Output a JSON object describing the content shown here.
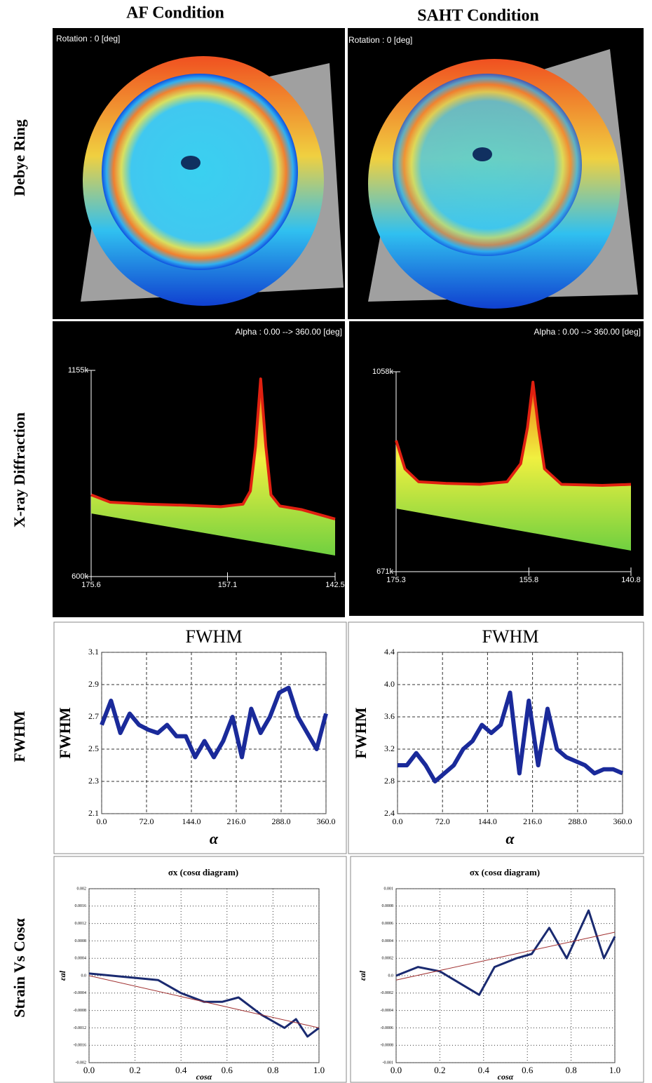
{
  "columns": [
    "AF Condition",
    "SAHT Condition"
  ],
  "rows": [
    "Debye Ring",
    "X-ray Diffraction",
    "FWHM",
    "Strain Vs Cosα"
  ],
  "debye_labels": [
    "Rotation : 0 [deg]",
    "Rotation : 0 [deg]"
  ],
  "chart_data": [
    {
      "type": "area",
      "subtitle": "Alpha : 0.00 --> 360.00 [deg]",
      "color": "#e02010",
      "x": [
        175.6,
        173,
        168,
        163,
        158,
        155,
        154,
        153.3,
        152.6,
        151.9,
        151.2,
        150,
        147,
        142.5
      ],
      "values": [
        820000,
        800000,
        795000,
        792000,
        788000,
        795000,
        830000,
        950000,
        1132000,
        950000,
        820000,
        790000,
        780000,
        755000
      ],
      "xlim": [
        175.6,
        142.5
      ],
      "xticks": [
        175.6,
        157.1,
        142.5
      ],
      "ylim": [
        600000,
        1155000
      ],
      "yticks": [
        {
          "value": 600000,
          "label": "600k"
        },
        {
          "value": 1155000,
          "label": "1155k"
        }
      ],
      "grid": false
    },
    {
      "type": "area",
      "subtitle": "Alpha : 0.00 --> 360.00 [deg]",
      "color": "#e02010",
      "x": [
        175.3,
        174,
        172,
        168,
        163,
        159,
        157,
        156,
        155.2,
        154.4,
        153.5,
        151,
        145,
        140.8
      ],
      "values": [
        925000,
        870000,
        845000,
        842000,
        840000,
        845000,
        880000,
        950000,
        1038000,
        950000,
        870000,
        840000,
        838000,
        840000
      ],
      "xlim": [
        175.3,
        140.8
      ],
      "xticks": [
        175.3,
        155.8,
        140.8
      ],
      "ylim": [
        671000,
        1058000
      ],
      "yticks": [
        {
          "value": 671000,
          "label": "671k"
        },
        {
          "value": 1058000,
          "label": "1058k"
        }
      ],
      "grid": false
    },
    {
      "type": "line",
      "title": "FWHM",
      "y_label": "FWHM",
      "x_label": "α",
      "color": "#1a2a9a",
      "x": [
        0,
        15,
        30,
        45,
        60,
        75,
        90,
        105,
        120,
        135,
        150,
        165,
        180,
        195,
        210,
        225,
        240,
        255,
        270,
        285,
        300,
        315,
        330,
        345,
        360
      ],
      "values": [
        2.65,
        2.8,
        2.6,
        2.72,
        2.65,
        2.62,
        2.6,
        2.65,
        2.58,
        2.58,
        2.45,
        2.55,
        2.45,
        2.55,
        2.7,
        2.45,
        2.75,
        2.6,
        2.7,
        2.85,
        2.88,
        2.7,
        2.6,
        2.5,
        2.72
      ],
      "xlim": [
        0,
        360
      ],
      "xticks": [
        {
          "value": 0,
          "label": "0.0"
        },
        {
          "value": 72,
          "label": "72.0"
        },
        {
          "value": 144,
          "label": "144.0"
        },
        {
          "value": 216,
          "label": "216.0"
        },
        {
          "value": 288,
          "label": "288.0"
        },
        {
          "value": 360,
          "label": "360.0"
        }
      ],
      "ylim": [
        2.1,
        3.1
      ],
      "yticks": [
        2.1,
        2.3,
        2.5,
        2.7,
        2.9,
        3.1
      ],
      "grid": true
    },
    {
      "type": "line",
      "title": "FWHM",
      "y_label": "FWHM",
      "x_label": "α",
      "color": "#1a2a9a",
      "x": [
        0,
        15,
        30,
        45,
        60,
        75,
        90,
        105,
        120,
        135,
        150,
        165,
        180,
        195,
        210,
        225,
        240,
        255,
        270,
        285,
        300,
        315,
        330,
        345,
        360
      ],
      "values": [
        3.0,
        3.0,
        3.15,
        3.0,
        2.8,
        2.9,
        3.0,
        3.2,
        3.3,
        3.5,
        3.4,
        3.5,
        3.9,
        2.9,
        3.8,
        3.0,
        3.7,
        3.2,
        3.1,
        3.05,
        3.0,
        2.9,
        2.95,
        2.95,
        2.9
      ],
      "xlim": [
        0,
        360
      ],
      "xticks": [
        {
          "value": 0,
          "label": "0.0"
        },
        {
          "value": 72,
          "label": "72.0"
        },
        {
          "value": 144,
          "label": "144.0"
        },
        {
          "value": 216,
          "label": "216.0"
        },
        {
          "value": 288,
          "label": "288.0"
        },
        {
          "value": 360,
          "label": "360.0"
        }
      ],
      "ylim": [
        2.4,
        4.4
      ],
      "yticks": [
        2.4,
        2.8,
        3.2,
        {
          "value": 3.6,
          "label": "3.6"
        },
        {
          "value": 4.0,
          "label": "4.0"
        },
        4.4
      ],
      "grid": true
    },
    {
      "type": "line",
      "title": "σx (cosα diagram)",
      "y_label": "εal",
      "x_label": "cosα",
      "series": [
        {
          "color": "#1a2a70",
          "x": [
            0,
            0.1,
            0.2,
            0.3,
            0.4,
            0.5,
            0.58,
            0.65,
            0.75,
            0.85,
            0.9,
            0.95,
            1.0
          ],
          "values": [
            5e-05,
            0.0,
            -5e-05,
            -0.0001,
            -0.0004,
            -0.0006,
            -0.0006,
            -0.0005,
            -0.0009,
            -0.0012,
            -0.001,
            -0.0014,
            -0.0012
          ]
        },
        {
          "color": "#a03030",
          "x": [
            0,
            1.0
          ],
          "values": [
            0.0,
            -0.0012
          ]
        }
      ],
      "xlim": [
        0,
        1
      ],
      "xticks": [
        {
          "value": 0,
          "label": "0.0"
        },
        0.2,
        0.4,
        0.6,
        0.8,
        {
          "value": 1,
          "label": "1.0"
        }
      ],
      "ylim": [
        -0.002,
        0.002
      ],
      "yticks": [
        -0.002,
        -0.0016,
        -0.0012,
        -0.0008,
        -0.0004,
        {
          "value": 0,
          "label": "0.0"
        },
        0.0004,
        0.0008,
        0.0012,
        0.0016,
        0.002
      ],
      "grid": true
    },
    {
      "type": "line",
      "title": "σx (cosα diagram)",
      "y_label": "εal",
      "x_label": "cosα",
      "series": [
        {
          "color": "#1a2a70",
          "x": [
            0,
            0.1,
            0.2,
            0.3,
            0.38,
            0.45,
            0.55,
            0.62,
            0.7,
            0.78,
            0.88,
            0.95,
            1.0
          ],
          "values": [
            0.0,
            0.0001,
            5e-05,
            -0.0001,
            -0.00022,
            0.0001,
            0.0002,
            0.00025,
            0.00055,
            0.0002,
            0.00075,
            0.0002,
            0.00045
          ]
        },
        {
          "color": "#a03030",
          "x": [
            0,
            1.0
          ],
          "values": [
            -5e-05,
            0.0005
          ]
        }
      ],
      "xlim": [
        0,
        1
      ],
      "xticks": [
        {
          "value": 0,
          "label": "0.0"
        },
        0.2,
        0.4,
        0.6,
        0.8,
        {
          "value": 1,
          "label": "1.0"
        }
      ],
      "ylim": [
        -0.001,
        0.001
      ],
      "yticks": [
        -0.001,
        -0.0008,
        -0.0006,
        -0.0004,
        -0.0002,
        {
          "value": 0,
          "label": "0.0"
        },
        0.0002,
        0.0004,
        0.0006,
        0.0008,
        0.001
      ],
      "grid": true
    }
  ]
}
